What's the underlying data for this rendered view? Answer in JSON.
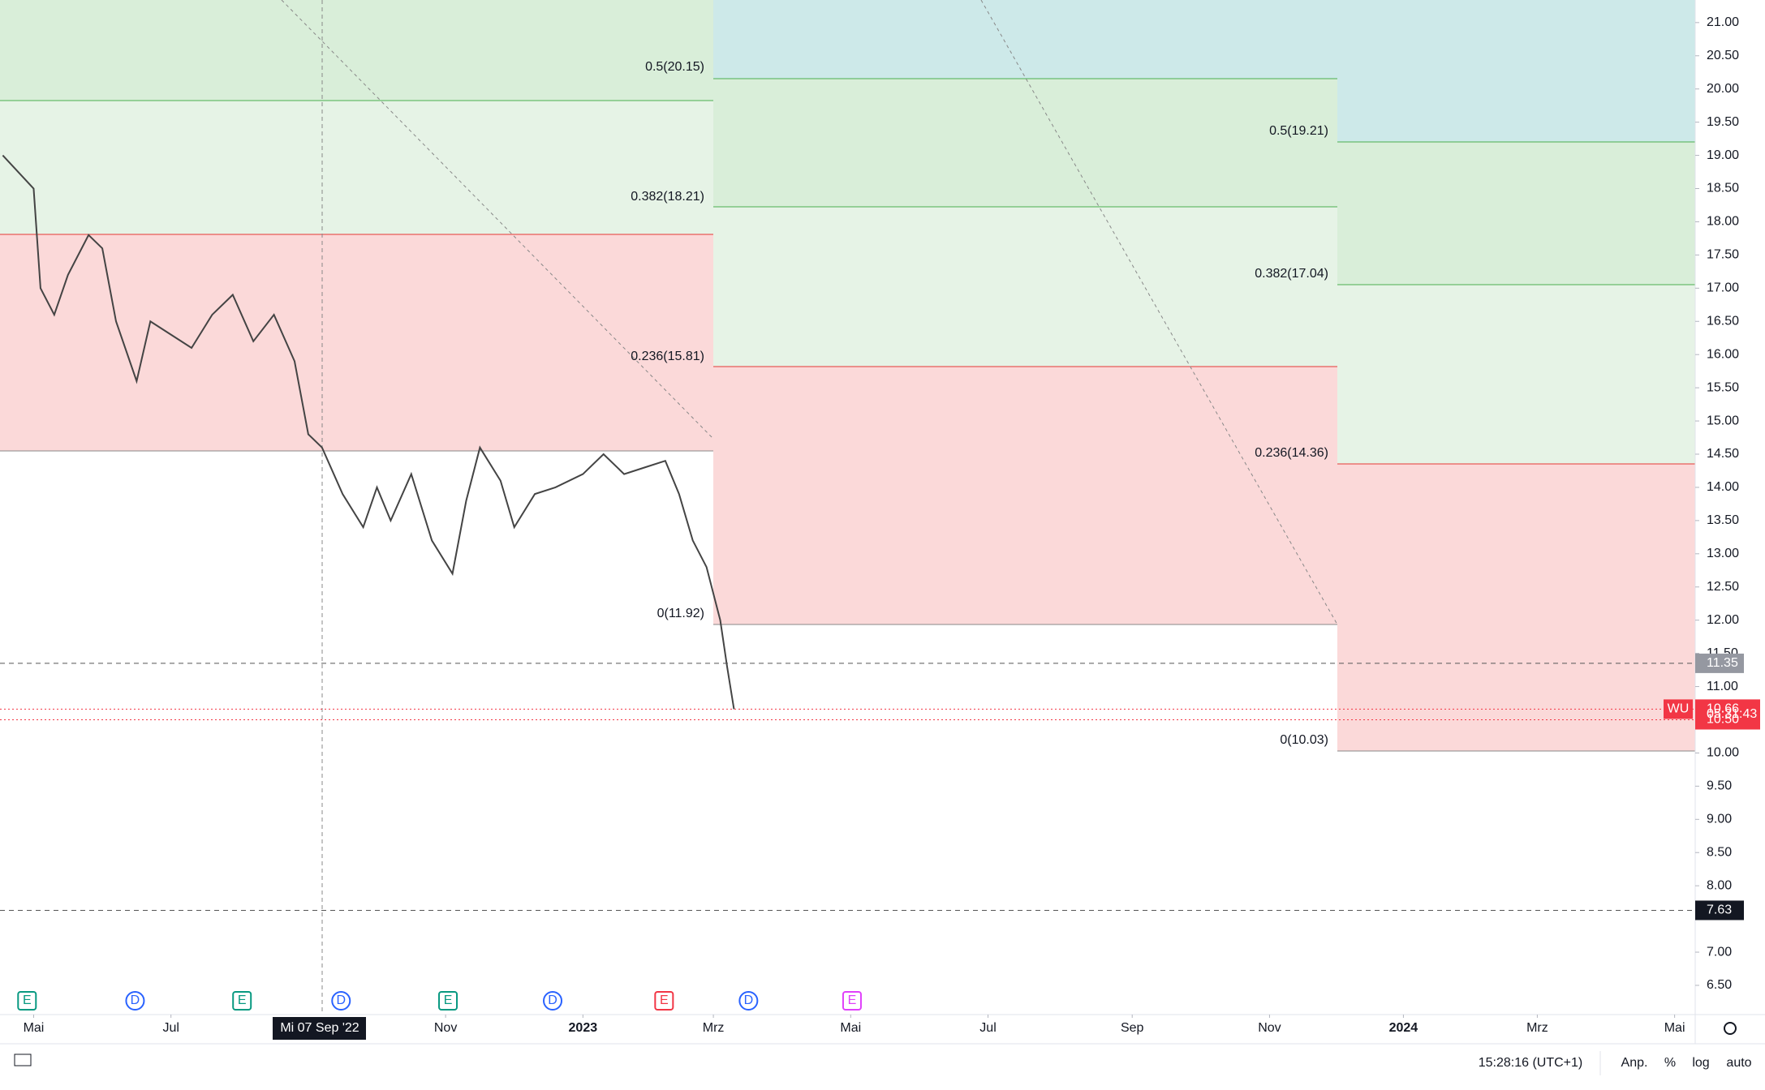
{
  "chart_data": {
    "type": "line",
    "symbol": "WU",
    "x": [
      -0.45,
      0,
      0.1,
      0.3,
      0.5,
      0.8,
      1.0,
      1.2,
      1.5,
      1.7,
      2.0,
      2.3,
      2.6,
      2.9,
      3.2,
      3.5,
      3.8,
      4.0,
      4.2,
      4.5,
      4.8,
      5.0,
      5.2,
      5.5,
      5.8,
      6.1,
      6.3,
      6.5,
      6.8,
      7.0,
      7.3,
      7.6,
      8.0,
      8.3,
      8.6,
      8.9,
      9.2,
      9.4,
      9.6,
      9.8,
      10.0,
      10.1,
      10.2
    ],
    "series": [
      {
        "color": "#444444",
        "values": [
          19.0,
          18.5,
          17.0,
          16.6,
          17.2,
          17.8,
          17.6,
          16.5,
          15.6,
          16.5,
          16.3,
          16.1,
          16.6,
          16.9,
          16.2,
          16.6,
          15.9,
          14.8,
          14.6,
          13.9,
          13.4,
          14.0,
          13.5,
          14.2,
          13.2,
          12.7,
          13.8,
          14.6,
          14.1,
          13.4,
          13.9,
          14.0,
          14.2,
          14.5,
          14.2,
          14.3,
          14.4,
          13.9,
          13.2,
          12.8,
          12.0,
          11.3,
          10.66
        ]
      }
    ],
    "xlim": [
      -0.49,
      24.2
    ],
    "xticks": [
      {
        "value": 0,
        "label": "Mai"
      },
      {
        "value": 2,
        "label": "Jul"
      },
      {
        "value": 6,
        "label": "Nov"
      },
      {
        "value": 8,
        "label": "2023"
      },
      {
        "value": 9.9,
        "label": "Mrz"
      },
      {
        "value": 11.9,
        "label": "Mai"
      },
      {
        "value": 13.9,
        "label": "Jul"
      },
      {
        "value": 16,
        "label": "Sep"
      },
      {
        "value": 18,
        "label": "Nov"
      },
      {
        "value": 19.95,
        "label": "2024"
      },
      {
        "value": 21.9,
        "label": "Mrz"
      },
      {
        "value": 23.9,
        "label": "Mai"
      }
    ],
    "ylim": [
      6.06,
      21.34
    ],
    "yticks": [
      {
        "value": 6.5,
        "label": "6.50"
      },
      {
        "value": 7,
        "label": "7.00"
      },
      {
        "value": 8,
        "label": "8.00"
      },
      {
        "value": 8.5,
        "label": "8.50"
      },
      {
        "value": 9,
        "label": "9.00"
      },
      {
        "value": 9.5,
        "label": "9.50"
      },
      {
        "value": 10,
        "label": "10.00"
      },
      {
        "value": 11,
        "label": "11.00"
      },
      {
        "value": 11.5,
        "label": "11.50"
      },
      {
        "value": 12,
        "label": "12.00"
      },
      {
        "value": 12.5,
        "label": "12.50"
      },
      {
        "value": 13,
        "label": "13.00"
      },
      {
        "value": 13.5,
        "label": "13.50"
      },
      {
        "value": 14,
        "label": "14.00"
      },
      {
        "value": 14.5,
        "label": "14.50"
      },
      {
        "value": 15,
        "label": "15.00"
      },
      {
        "value": 15.5,
        "label": "15.50"
      },
      {
        "value": 16,
        "label": "16.00"
      },
      {
        "value": 16.5,
        "label": "16.50"
      },
      {
        "value": 17,
        "label": "17.00"
      },
      {
        "value": 17.5,
        "label": "17.50"
      },
      {
        "value": 18,
        "label": "18.00"
      },
      {
        "value": 18.5,
        "label": "18.50"
      },
      {
        "value": 19,
        "label": "19.00"
      },
      {
        "value": 19.5,
        "label": "19.50"
      },
      {
        "value": 20,
        "label": "20.00"
      },
      {
        "value": 20.5,
        "label": "20.50"
      },
      {
        "value": 21,
        "label": "21.00"
      }
    ],
    "crosshair_date": "Mi 07 Sep '22",
    "levels": [
      {
        "value": 11.35,
        "label": "11.35"
      },
      {
        "value": 7.63,
        "label": "7.63"
      }
    ],
    "last_price": {
      "value": 10.66,
      "label": "10.66"
    },
    "countdown": "05:31:43",
    "low_price": {
      "value": 10.5,
      "label": "10.50"
    },
    "fib_left": [
      "0.5(20.15)",
      "0.382(18.21)",
      "0.236(15.81)",
      "0(11.92)"
    ],
    "fib_right": [
      "0.5(19.21)",
      "0.382(17.04)",
      "0.236(14.36)",
      "0(10.03)"
    ],
    "events": [
      "E",
      "D",
      "E",
      "D",
      "E",
      "D",
      "E",
      "D",
      "E"
    ],
    "toolbar": {
      "time": "15:28:16 (UTC+1)",
      "adjust": "Anp.",
      "percent": "%",
      "log": "log",
      "auto": "auto"
    }
  }
}
